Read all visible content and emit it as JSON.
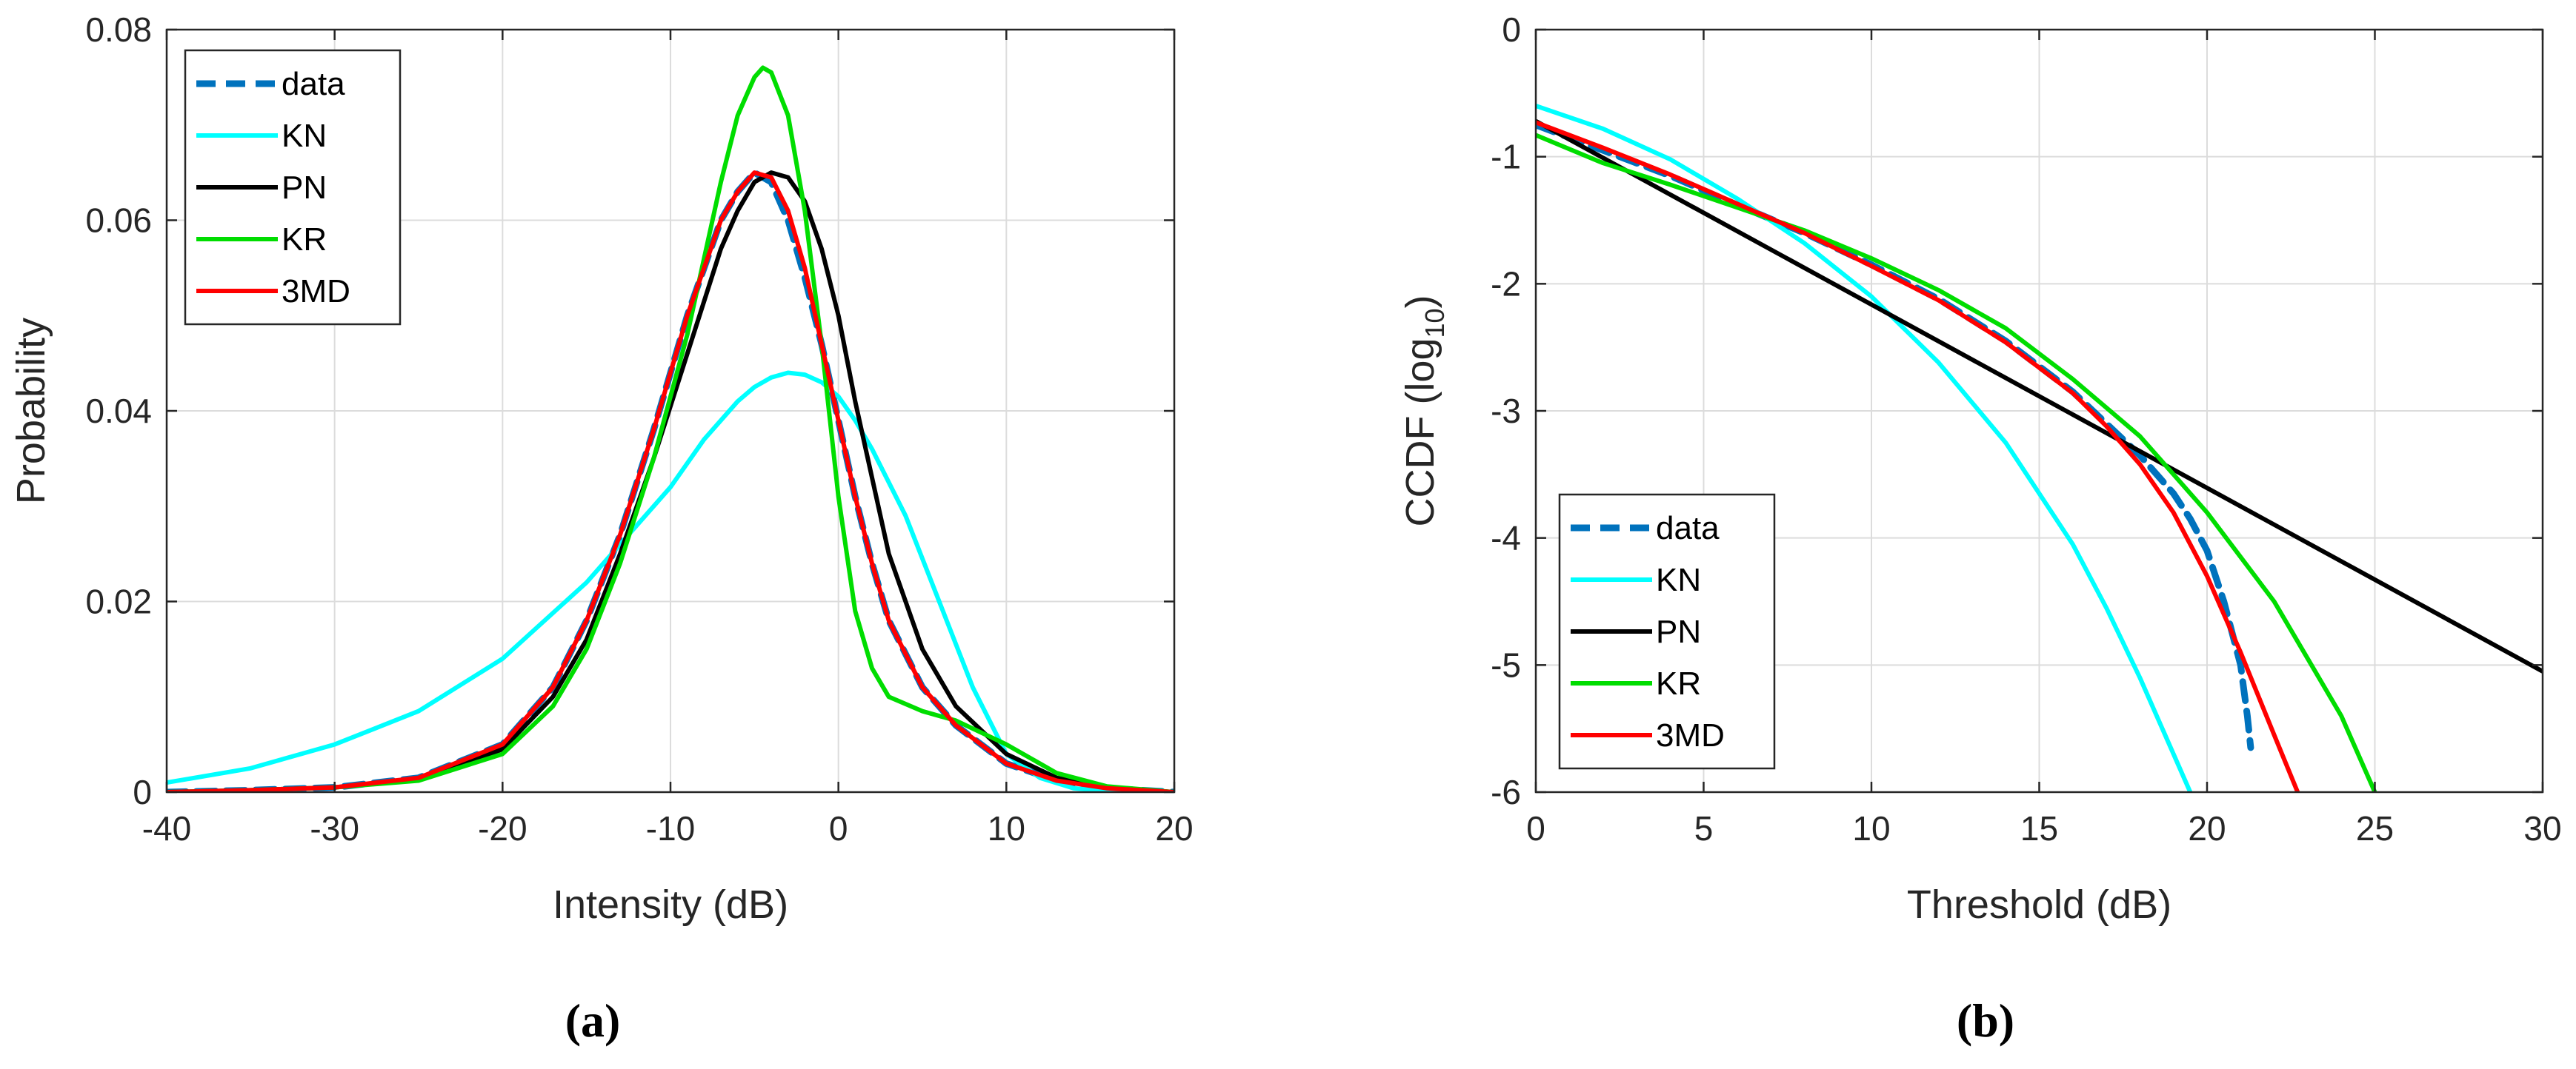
{
  "chart_data": [
    {
      "type": "line",
      "panel_label": "(a)",
      "xlabel": "Intensity (dB)",
      "ylabel": "Probability",
      "xlim": [
        -40,
        20
      ],
      "ylim": [
        0,
        0.08
      ],
      "xticks": [
        -40,
        -30,
        -20,
        -10,
        0,
        10,
        20
      ],
      "yticks": [
        0,
        0.02,
        0.04,
        0.06,
        0.08
      ],
      "xtick_labels": [
        "-40",
        "-30",
        "-20",
        "-10",
        "0",
        "10",
        "20"
      ],
      "ytick_labels": [
        "0",
        "0.02",
        "0.04",
        "0.06",
        "0.08"
      ],
      "grid": true,
      "legend_position": "top-left",
      "series": [
        {
          "name": "data",
          "color": "#0072BD",
          "style": "dashed",
          "x": [
            -40,
            -35,
            -30,
            -25,
            -20,
            -17,
            -15,
            -13,
            -11,
            -9,
            -7,
            -6,
            -5,
            -4,
            -3,
            -2,
            -1,
            0,
            1,
            2,
            3,
            5,
            7,
            10,
            13,
            16,
            20
          ],
          "y": [
            0.0,
            0.0002,
            0.0005,
            0.0015,
            0.005,
            0.011,
            0.018,
            0.027,
            0.038,
            0.05,
            0.06,
            0.063,
            0.065,
            0.064,
            0.06,
            0.054,
            0.047,
            0.039,
            0.031,
            0.024,
            0.018,
            0.011,
            0.007,
            0.003,
            0.0012,
            0.0004,
            0.0
          ]
        },
        {
          "name": "KN",
          "color": "#00FFFF",
          "style": "solid",
          "x": [
            -40,
            -35,
            -30,
            -25,
            -20,
            -15,
            -12,
            -10,
            -8,
            -6,
            -5,
            -4,
            -3,
            -2,
            -1,
            0,
            1,
            2,
            4,
            6,
            8,
            10,
            12,
            14,
            16,
            20
          ],
          "y": [
            0.001,
            0.0025,
            0.005,
            0.0085,
            0.014,
            0.022,
            0.028,
            0.032,
            0.037,
            0.041,
            0.0425,
            0.0435,
            0.044,
            0.0438,
            0.043,
            0.0415,
            0.039,
            0.036,
            0.029,
            0.02,
            0.011,
            0.004,
            0.0015,
            0.0004,
            0.0001,
            0.0
          ]
        },
        {
          "name": "PN",
          "color": "#000000",
          "style": "solid",
          "x": [
            -40,
            -35,
            -30,
            -25,
            -20,
            -17,
            -15,
            -13,
            -11,
            -9,
            -7,
            -6,
            -5,
            -4,
            -3,
            -2,
            -1,
            0,
            1,
            2,
            3,
            5,
            7,
            10,
            13,
            16,
            20
          ],
          "y": [
            0.0,
            0.0002,
            0.0005,
            0.0014,
            0.0045,
            0.01,
            0.016,
            0.025,
            0.035,
            0.046,
            0.057,
            0.061,
            0.064,
            0.065,
            0.0645,
            0.062,
            0.057,
            0.05,
            0.041,
            0.033,
            0.025,
            0.015,
            0.009,
            0.004,
            0.0015,
            0.0005,
            0.0
          ]
        },
        {
          "name": "KR",
          "color": "#00DD00",
          "style": "solid",
          "x": [
            -40,
            -35,
            -30,
            -25,
            -20,
            -17,
            -15,
            -13,
            -11,
            -9,
            -7,
            -6,
            -5,
            -4.5,
            -4,
            -3,
            -2,
            -1,
            0,
            1,
            2,
            3,
            5,
            7,
            10,
            13,
            16,
            20
          ],
          "y": [
            0.0,
            0.0002,
            0.0005,
            0.0012,
            0.004,
            0.009,
            0.015,
            0.024,
            0.035,
            0.048,
            0.064,
            0.071,
            0.075,
            0.076,
            0.0755,
            0.071,
            0.061,
            0.047,
            0.031,
            0.019,
            0.013,
            0.01,
            0.0085,
            0.0075,
            0.005,
            0.002,
            0.0006,
            0.0
          ]
        },
        {
          "name": "3MD",
          "color": "#FF0000",
          "style": "solid",
          "x": [
            -40,
            -35,
            -30,
            -25,
            -20,
            -17,
            -15,
            -13,
            -11,
            -9,
            -7,
            -6,
            -5,
            -4,
            -3,
            -2,
            -1,
            0,
            1,
            2,
            3,
            5,
            7,
            10,
            13,
            16,
            20
          ],
          "y": [
            0.0,
            0.0002,
            0.0005,
            0.0015,
            0.005,
            0.011,
            0.018,
            0.027,
            0.038,
            0.05,
            0.06,
            0.063,
            0.065,
            0.0645,
            0.061,
            0.055,
            0.047,
            0.039,
            0.031,
            0.024,
            0.018,
            0.011,
            0.007,
            0.003,
            0.0012,
            0.0004,
            0.0
          ]
        }
      ]
    },
    {
      "type": "line",
      "panel_label": "(b)",
      "xlabel": "Threshold (dB)",
      "ylabel_main": "CCDF (log",
      "ylabel_sub": "10",
      "ylabel_tail": ")",
      "xlim": [
        0,
        30
      ],
      "ylim": [
        -6,
        0
      ],
      "xticks": [
        0,
        5,
        10,
        15,
        20,
        25,
        30
      ],
      "yticks": [
        -6,
        -5,
        -4,
        -3,
        -2,
        -1,
        0
      ],
      "xtick_labels": [
        "0",
        "5",
        "10",
        "15",
        "20",
        "25",
        "30"
      ],
      "ytick_labels": [
        "-6",
        "-5",
        "-4",
        "-3",
        "-2",
        "-1",
        "0"
      ],
      "grid": true,
      "legend_position": "bottom-left",
      "series": [
        {
          "name": "data",
          "color": "#0072BD",
          "style": "dashed",
          "x": [
            0,
            2,
            4,
            6,
            8,
            10,
            12,
            14,
            16,
            17,
            18,
            19,
            19.5,
            20,
            20.5,
            21,
            21.1,
            21.2,
            21.3
          ],
          "y": [
            -0.75,
            -0.95,
            -1.15,
            -1.38,
            -1.6,
            -1.85,
            -2.12,
            -2.45,
            -2.85,
            -3.1,
            -3.35,
            -3.65,
            -3.85,
            -4.1,
            -4.5,
            -5.0,
            -5.2,
            -5.4,
            -5.65
          ]
        },
        {
          "name": "KN",
          "color": "#00FFFF",
          "style": "solid",
          "x": [
            0,
            2,
            4,
            6,
            8,
            10,
            12,
            14,
            16,
            17,
            18,
            19,
            19.5
          ],
          "y": [
            -0.6,
            -0.78,
            -1.02,
            -1.33,
            -1.68,
            -2.1,
            -2.62,
            -3.25,
            -4.05,
            -4.55,
            -5.1,
            -5.7,
            -6.0
          ]
        },
        {
          "name": "PN",
          "color": "#000000",
          "style": "solid",
          "x": [
            0,
            30
          ],
          "y": [
            -0.72,
            -5.05
          ]
        },
        {
          "name": "KR",
          "color": "#00DD00",
          "style": "solid",
          "x": [
            0,
            2,
            4,
            6,
            8,
            10,
            12,
            14,
            16,
            18,
            20,
            22,
            24,
            25
          ],
          "y": [
            -0.83,
            -1.05,
            -1.22,
            -1.4,
            -1.58,
            -1.8,
            -2.05,
            -2.35,
            -2.75,
            -3.2,
            -3.8,
            -4.5,
            -5.4,
            -6.0
          ]
        },
        {
          "name": "3MD",
          "color": "#FF0000",
          "style": "solid",
          "x": [
            0,
            2,
            4,
            6,
            8,
            10,
            12,
            14,
            16,
            17,
            18,
            19,
            20,
            21,
            22,
            22.7
          ],
          "y": [
            -0.73,
            -0.93,
            -1.14,
            -1.37,
            -1.6,
            -1.86,
            -2.13,
            -2.46,
            -2.86,
            -3.12,
            -3.42,
            -3.8,
            -4.3,
            -4.9,
            -5.55,
            -6.0
          ]
        }
      ]
    }
  ]
}
